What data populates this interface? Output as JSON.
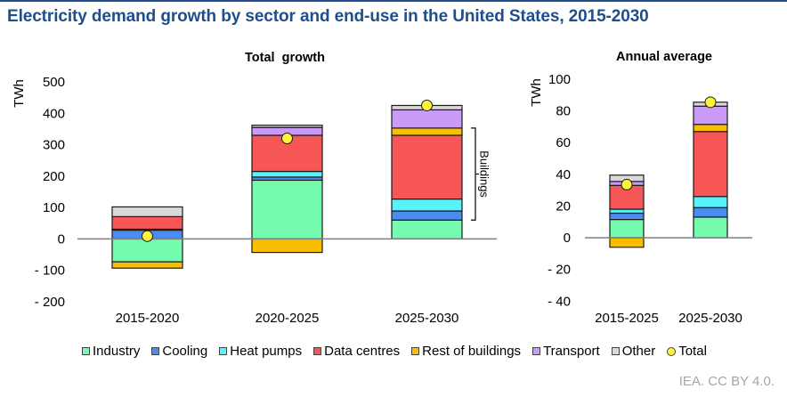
{
  "title": "Electricity demand growth by sector and end-use in the United States, 2015-2030",
  "credit": "IEA. CC BY 4.0.",
  "colors": {
    "Industry": "#74fbad",
    "Cooling": "#4a8cf0",
    "Heat pumps": "#55f4fa",
    "Data centres": "#f65656",
    "Rest of buildings": "#f7bf00",
    "Transport": "#c99af7",
    "Other": "#d9d9d9",
    "Total": "#fff23a",
    "title": "#1f4e8c"
  },
  "legend": [
    {
      "label": "Industry",
      "marker": "square"
    },
    {
      "label": "Cooling",
      "marker": "square"
    },
    {
      "label": "Heat pumps",
      "marker": "square"
    },
    {
      "label": "Data centres",
      "marker": "square"
    },
    {
      "label": "Rest of buildings",
      "marker": "square"
    },
    {
      "label": "Transport",
      "marker": "square"
    },
    {
      "label": "Other",
      "marker": "square"
    },
    {
      "label": "Total",
      "marker": "circle"
    }
  ],
  "chart_data": [
    {
      "type": "bar",
      "stacked": true,
      "title": "Total  growth",
      "xlabel": "",
      "ylabel": "TWh",
      "ylim": [
        -200,
        500
      ],
      "yticks": [
        500,
        400,
        300,
        200,
        100,
        0,
        -100,
        -200
      ],
      "ytick_labels": [
        "500",
        "400",
        "300",
        "200",
        "100",
        "0",
        "- 100",
        "- 200"
      ],
      "categories": [
        "2015-2020",
        "2020-2025",
        "2025-2030"
      ],
      "series": [
        {
          "name": "Industry",
          "values": [
            -73,
            187,
            60
          ]
        },
        {
          "name": "Cooling",
          "values": [
            28,
            10,
            29
          ]
        },
        {
          "name": "Heat pumps",
          "values": [
            3,
            18,
            38
          ]
        },
        {
          "name": "Data centres",
          "values": [
            40,
            115,
            203
          ]
        },
        {
          "name": "Rest of buildings",
          "values": [
            -20,
            -43,
            23
          ]
        },
        {
          "name": "Transport",
          "values": [
            0,
            25,
            58
          ]
        },
        {
          "name": "Other",
          "values": [
            31,
            7,
            14
          ]
        }
      ],
      "total": {
        "name": "Total",
        "values": [
          9,
          320,
          425
        ]
      },
      "annotation": {
        "text": "Buildings",
        "category": "2025-2030",
        "spans": [
          "Cooling",
          "Heat pumps",
          "Data centres",
          "Rest of buildings"
        ]
      },
      "grid": false,
      "legend_position": "bottom"
    },
    {
      "type": "bar",
      "stacked": true,
      "title": "Annual average",
      "xlabel": "",
      "ylabel": "TWh",
      "ylim": [
        -40,
        100
      ],
      "yticks": [
        100,
        80,
        60,
        40,
        20,
        0,
        -20,
        -40
      ],
      "ytick_labels": [
        "100",
        "80",
        "60",
        "40",
        "20",
        "0",
        "- 20",
        "- 40"
      ],
      "categories": [
        "2015-2025",
        "2025-2030"
      ],
      "series": [
        {
          "name": "Industry",
          "values": [
            11.5,
            13
          ]
        },
        {
          "name": "Cooling",
          "values": [
            4,
            6
          ]
        },
        {
          "name": "Heat pumps",
          "values": [
            2.5,
            7
          ]
        },
        {
          "name": "Data centres",
          "values": [
            15,
            41
          ]
        },
        {
          "name": "Rest of buildings",
          "values": [
            -6,
            4.5
          ]
        },
        {
          "name": "Transport",
          "values": [
            2.5,
            11.5
          ]
        },
        {
          "name": "Other",
          "values": [
            4,
            2.5
          ]
        }
      ],
      "total": {
        "name": "Total",
        "values": [
          33.5,
          85.5
        ]
      },
      "grid": false,
      "legend_position": "bottom"
    }
  ]
}
